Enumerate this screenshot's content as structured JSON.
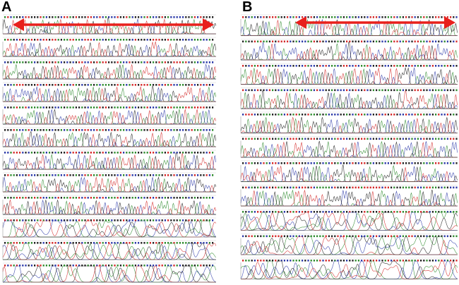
{
  "panels": [
    {
      "label": "A",
      "rows": 12,
      "arrow": "double-headed",
      "arrow_color": "#e8201c"
    },
    {
      "label": "B",
      "rows": 11,
      "arrow": "double-headed",
      "arrow_color": "#e8201c"
    }
  ],
  "base_colors": {
    "A": "#2e8b2e",
    "C": "#2c3aa8",
    "G": "#222222",
    "T": "#d42a2a"
  }
}
